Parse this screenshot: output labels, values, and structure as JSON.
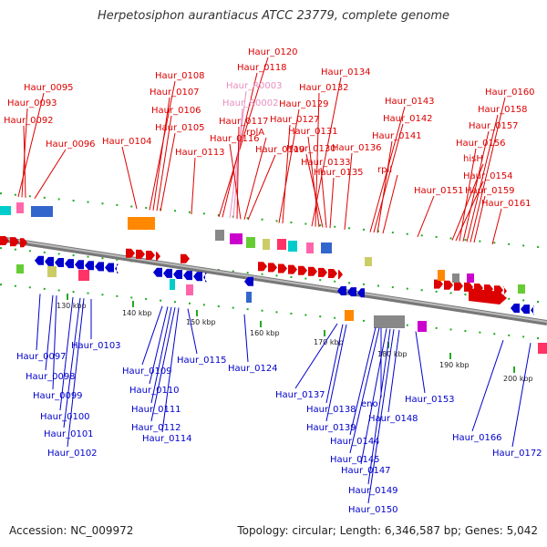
{
  "title": "Herpetosiphon aurantiacus ATCC 23779, complete genome",
  "footer": {
    "accession": "Accession: NC_009972",
    "topology": "Topology: circular; Length: 6,346,587 bp; Genes: 5,042"
  },
  "colors": {
    "forward_strand": "#dd0000",
    "reverse_strand": "#0000cc",
    "rna_label": "#e88fbf",
    "backbone": "#777777",
    "tick": "#22aa22"
  },
  "scale_ticks": [
    "130 kbp",
    "140 kbp",
    "150 kbp",
    "160 kbp",
    "170 kbp",
    "180 kbp",
    "190 kbp",
    "200 kbp"
  ],
  "top_labels": [
    "Haur_0095",
    "Haur_0093",
    "Haur_0092",
    "Haur_0096",
    "Haur_0104",
    "Haur_0108",
    "Haur_0107",
    "Haur_0106",
    "Haur_0105",
    "Haur_0113",
    "Haur_0120",
    "Haur_0118",
    "Haur_R0003",
    "Haur_R0002",
    "Haur_0117",
    "Haur_0116",
    "rplA",
    "Haur_0119",
    "Haur_0129",
    "Haur_0127",
    "Haur_0134",
    "Haur_0132",
    "Haur_0131",
    "Haur_0130",
    "Haur_0133",
    "Haur_0135",
    "Haur_0136",
    "Haur_0143",
    "Haur_0142",
    "Haur_0141",
    "rplI",
    "Haur_0151",
    "Haur_0160",
    "Haur_0158",
    "Haur_0157",
    "Haur_0156",
    "hisH",
    "Haur_0154",
    "Haur_0159",
    "Haur_0161"
  ],
  "bottom_labels": [
    "Haur_0097",
    "Haur_0103",
    "Haur_0098",
    "Haur_0099",
    "Haur_0100",
    "Haur_0101",
    "Haur_0102",
    "Haur_0109",
    "Haur_0115",
    "Haur_0110",
    "Haur_0111",
    "Haur_0112",
    "Haur_0114",
    "Haur_0124",
    "Haur_0137",
    "Haur_0138",
    "Haur_0139",
    "eno",
    "Haur_0148",
    "Haur_0144",
    "Haur_0145",
    "Haur_0147",
    "Haur_0149",
    "Haur_0150",
    "Haur_0153",
    "Haur_0166",
    "Haur_0172"
  ]
}
